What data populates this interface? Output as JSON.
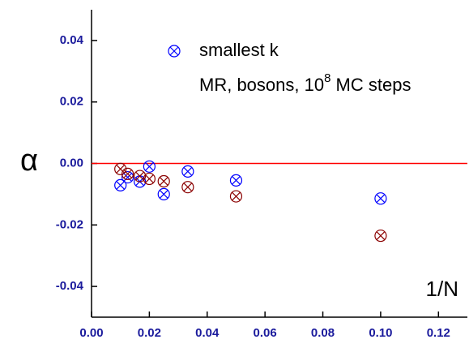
{
  "chart_data": {
    "type": "scatter",
    "ylabel": "α",
    "xlabel": "1/N",
    "annotation": {
      "text": "MR, bosons, 10",
      "superscript": "8",
      "suffix": " MC steps"
    },
    "hline": {
      "value": 0,
      "color": "#ff0000"
    },
    "xlim": [
      0,
      0.13
    ],
    "ylim": [
      -0.05,
      0.05
    ],
    "xticks": [
      {
        "value": 0,
        "label": "0.00"
      },
      {
        "value": 0.02,
        "label": "0.02"
      },
      {
        "value": 0.04,
        "label": "0.04"
      },
      {
        "value": 0.06,
        "label": "0.06"
      },
      {
        "value": 0.08,
        "label": "0.08"
      },
      {
        "value": 0.1,
        "label": "0.10"
      },
      {
        "value": 0.12,
        "label": "0.12"
      }
    ],
    "yticks": [
      {
        "value": -0.04,
        "label": "-0.04"
      },
      {
        "value": -0.02,
        "label": "-0.02"
      },
      {
        "value": 0,
        "label": "0.00"
      },
      0.02,
      0.04
    ],
    "series": [
      {
        "name": "smallest k",
        "color": "#0000ff",
        "x": [
          0.01,
          0.0125,
          0.0167,
          0.02,
          0.025,
          0.0333,
          0.05,
          0.1
        ],
        "values": [
          -0.0071,
          -0.0045,
          -0.0059,
          -0.001,
          -0.01,
          -0.0026,
          -0.0055,
          -0.0114
        ]
      },
      {
        "color": "#8b0000",
        "x": [
          0.01,
          0.0125,
          0.0167,
          0.02,
          0.025,
          0.0333,
          0.05,
          0.1
        ],
        "values": [
          -0.0018,
          -0.0034,
          -0.0041,
          -0.005,
          -0.0058,
          -0.0077,
          -0.0107,
          -0.0235
        ]
      }
    ]
  }
}
